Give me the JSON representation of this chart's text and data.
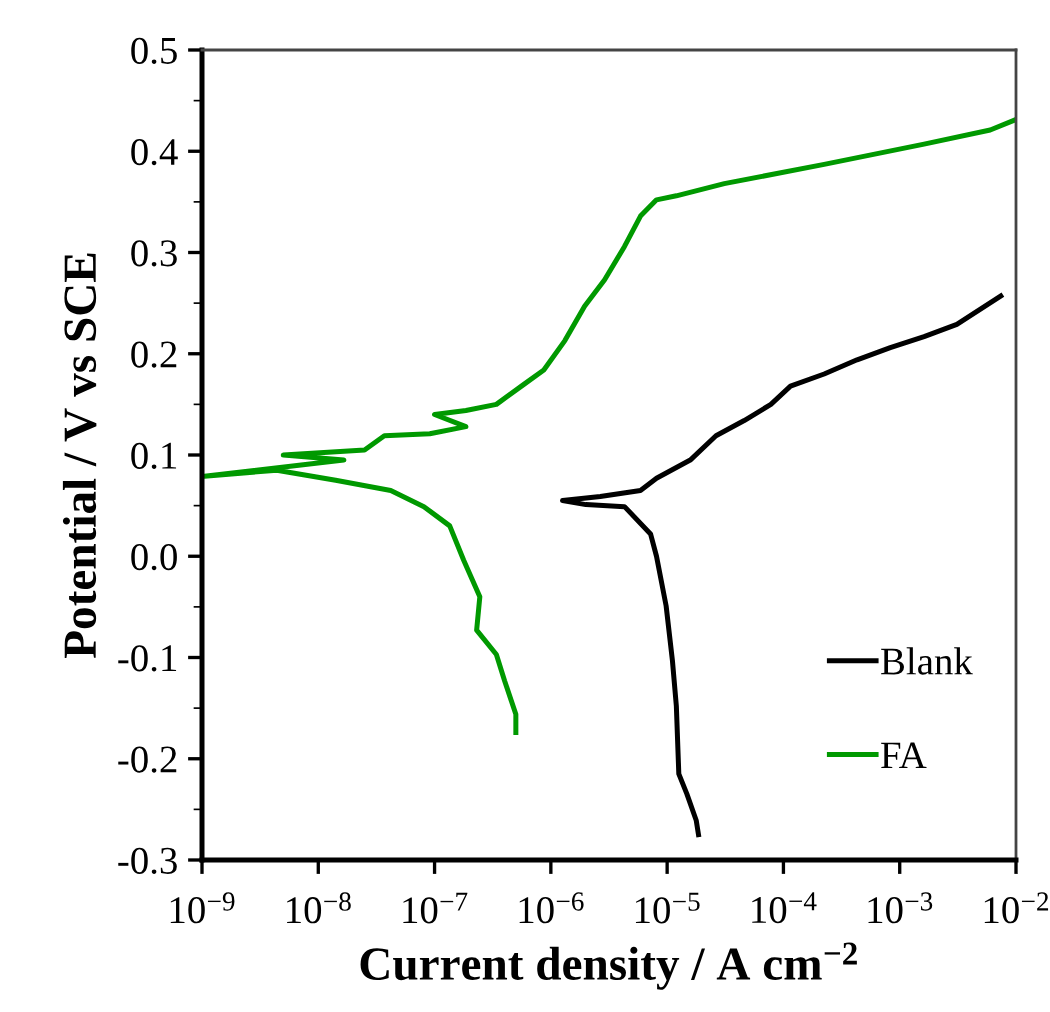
{
  "chart_data": {
    "type": "line",
    "xlabel": "Current density / A cm$^{−2}$",
    "ylabel": "Potential / V vs SCE",
    "log": "x",
    "xlim": [
      1e-09,
      0.01
    ],
    "ylim": [
      -0.3,
      0.5
    ],
    "xticks": [
      {
        "value": 1e-09,
        "label": "10$^{−9}$"
      },
      {
        "value": 1e-08,
        "label": "10$^{−8}$"
      },
      {
        "value": 1e-07,
        "label": "10$^{−7}$"
      },
      {
        "value": 1e-06,
        "label": "10$^{−6}$"
      },
      {
        "value": 1e-05,
        "label": "10$^{−5}$"
      },
      {
        "value": 0.0001,
        "label": "10$^{−4}$"
      },
      {
        "value": 0.001,
        "label": "10$^{−3}$"
      },
      {
        "value": 0.01,
        "label": "10$^{−2}$"
      }
    ],
    "yticks": [
      -0.3,
      -0.2,
      -0.1,
      {
        "value": 0,
        "label": "0.0"
      },
      0.1,
      0.2,
      0.3,
      0.4,
      0.5
    ],
    "grid": false,
    "legend": "bottom right",
    "marker": "none",
    "line_style": "solid",
    "series": [
      {
        "name": "Blank",
        "color": "#000000",
        "x": [
          1.86e-05,
          1.78e-05,
          1.48e-05,
          1.26e-05,
          1.2e-05,
          1.11e-05,
          9.8e-06,
          8.1e-06,
          7.2e-06,
          4.3e-06,
          2e-06,
          1.26e-06,
          2.66e-06,
          5.9e-06,
          8.1e-06,
          1.58e-05,
          2.63e-05,
          4.6e-05,
          7.8e-05,
          0.000115,
          0.000224,
          0.00043,
          0.00083,
          0.00162,
          0.0031,
          0.0074
        ],
        "values": [
          -0.275,
          -0.261,
          -0.235,
          -0.215,
          -0.148,
          -0.103,
          -0.049,
          0.0,
          0.022,
          0.049,
          0.051,
          0.055,
          0.059,
          0.065,
          0.077,
          0.095,
          0.119,
          0.134,
          0.15,
          0.168,
          0.18,
          0.194,
          0.206,
          0.217,
          0.229,
          0.257
        ]
      },
      {
        "name": "FA",
        "color": "#009900",
        "x": [
          5e-07,
          5e-07,
          4e-07,
          3.4e-07,
          2.3e-07,
          2.45e-07,
          1.78e-07,
          1.35e-07,
          8.1e-08,
          4.2e-08,
          1.41e-08,
          4.4e-09,
          1.05e-09,
          1.66e-08,
          5e-09,
          2.5e-08,
          3.7e-08,
          9.1e-08,
          1.86e-07,
          1e-07,
          1.86e-07,
          3.4e-07,
          5.9e-07,
          8.7e-07,
          1.32e-06,
          1.95e-06,
          2.9e-06,
          4.3e-06,
          5.9e-06,
          8.1e-06,
          1.2e-05,
          3.1e-05,
          0.000224,
          0.00162,
          0.006,
          0.0098
        ],
        "values": [
          -0.174,
          -0.156,
          -0.123,
          -0.097,
          -0.073,
          -0.04,
          -0.004,
          0.03,
          0.049,
          0.065,
          0.075,
          0.085,
          0.079,
          0.095,
          0.1,
          0.105,
          0.119,
          0.121,
          0.128,
          0.14,
          0.144,
          0.15,
          0.17,
          0.184,
          0.213,
          0.247,
          0.273,
          0.306,
          0.336,
          0.352,
          0.356,
          0.368,
          0.387,
          0.407,
          0.421,
          0.431
        ]
      }
    ]
  }
}
